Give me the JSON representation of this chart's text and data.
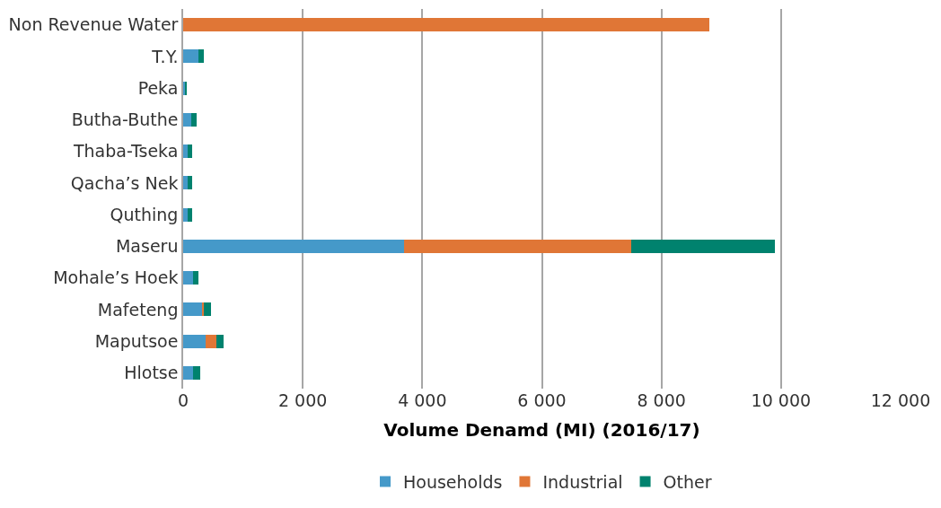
{
  "chart_data": {
    "type": "bar",
    "orientation": "horizontal",
    "stacked": true,
    "xlabel": "Volume Denamd (MI) (2016/17)",
    "categories": [
      "Non Revenue Water",
      "T.Y.",
      "Peka",
      "Butha-Buthe",
      "Thaba-Tseka",
      "Qacha’s Nek",
      "Quthing",
      "Maseru",
      "Mohale’s Hoek",
      "Mafeteng",
      "Maputsoe",
      "Hlotse"
    ],
    "series": [
      {
        "name": "Households",
        "color": "#4599c9",
        "values": [
          null,
          260,
          30,
          130,
          70,
          80,
          80,
          3700,
          170,
          320,
          380,
          170
        ]
      },
      {
        "name": "Industrial",
        "color": "#e07636",
        "values": [
          8800,
          null,
          null,
          null,
          null,
          null,
          null,
          3800,
          null,
          20,
          180,
          null
        ]
      },
      {
        "name": "Other",
        "color": "#00826e",
        "values": [
          null,
          80,
          20,
          100,
          80,
          70,
          70,
          2400,
          80,
          130,
          110,
          110
        ]
      }
    ],
    "xlim": [
      0,
      12000
    ],
    "xticks": [
      0,
      {
        "value": 2000,
        "label": "2 000"
      },
      {
        "value": 4000,
        "label": "4 000"
      },
      {
        "value": 6000,
        "label": "6 000"
      },
      {
        "value": 8000,
        "label": "8 000"
      },
      {
        "value": 10000,
        "label": "10 000"
      },
      {
        "value": 12000,
        "label": "12 000"
      }
    ],
    "grid": "x",
    "legend": "bottom"
  }
}
